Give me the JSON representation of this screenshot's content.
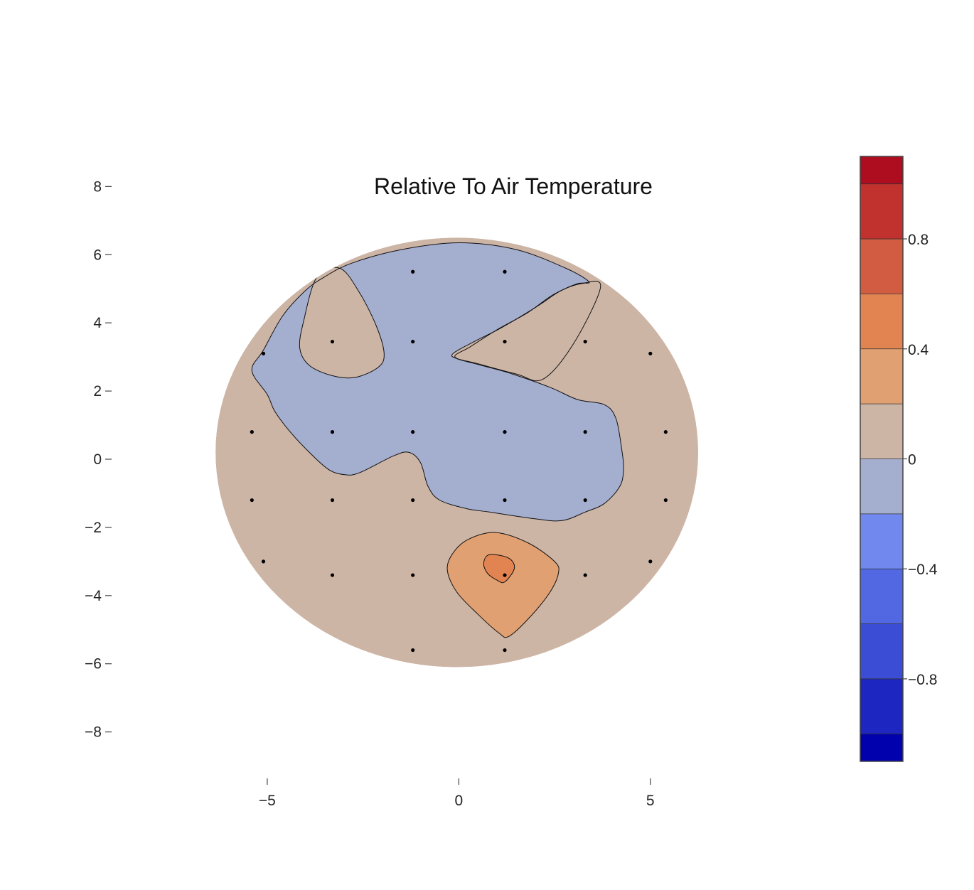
{
  "chart_data": {
    "type": "contour",
    "title": "Relative To Air Temperature",
    "xlabel": "",
    "ylabel": "",
    "xlim": [
      -9.6,
      8.4
    ],
    "ylim": [
      -8.8,
      8.8
    ],
    "x_ticks": [
      {
        "value": -5,
        "label": "−5"
      },
      {
        "value": 0,
        "label": "0"
      },
      {
        "value": 5,
        "label": "5"
      }
    ],
    "y_ticks": [
      {
        "value": 8,
        "label": "8"
      },
      {
        "value": 6,
        "label": "6"
      },
      {
        "value": 4,
        "label": "4"
      },
      {
        "value": 2,
        "label": "2"
      },
      {
        "value": 0,
        "label": "0"
      },
      {
        "value": -2,
        "label": "−2"
      },
      {
        "value": -4,
        "label": "−4"
      },
      {
        "value": -6,
        "label": "−6"
      },
      {
        "value": -8,
        "label": "−8"
      }
    ],
    "grid": false,
    "domain_circle": {
      "cx": -0.05,
      "cy": 0.2,
      "r": 6.3
    },
    "sensor_points": [
      {
        "x": -1.2,
        "y": 5.5
      },
      {
        "x": 1.2,
        "y": 5.5
      },
      {
        "x": -5.1,
        "y": 3.1
      },
      {
        "x": -3.3,
        "y": 3.45
      },
      {
        "x": -1.2,
        "y": 3.45
      },
      {
        "x": 1.2,
        "y": 3.45
      },
      {
        "x": 3.3,
        "y": 3.45
      },
      {
        "x": 5.0,
        "y": 3.1
      },
      {
        "x": -5.4,
        "y": 0.8
      },
      {
        "x": -3.3,
        "y": 0.8
      },
      {
        "x": -1.2,
        "y": 0.8
      },
      {
        "x": 1.2,
        "y": 0.8
      },
      {
        "x": 3.3,
        "y": 0.8
      },
      {
        "x": 5.4,
        "y": 0.8
      },
      {
        "x": -5.4,
        "y": -1.2
      },
      {
        "x": -3.3,
        "y": -1.2
      },
      {
        "x": -1.2,
        "y": -1.2
      },
      {
        "x": 1.2,
        "y": -1.2
      },
      {
        "x": 3.3,
        "y": -1.2
      },
      {
        "x": 5.4,
        "y": -1.2
      },
      {
        "x": -5.1,
        "y": -3.0
      },
      {
        "x": -3.3,
        "y": -3.4
      },
      {
        "x": -1.2,
        "y": -3.4
      },
      {
        "x": 1.2,
        "y": -3.4
      },
      {
        "x": 3.3,
        "y": -3.4
      },
      {
        "x": 5.0,
        "y": -3.0
      },
      {
        "x": -1.2,
        "y": -5.6
      },
      {
        "x": 1.2,
        "y": -5.6
      }
    ],
    "regions": [
      {
        "name": "cold-region-upper",
        "level": [
          -0.2,
          0
        ],
        "color": "#a4aecf",
        "points": [
          [
            -5.4,
            2.6
          ],
          [
            -5.1,
            3.2
          ],
          [
            -4.6,
            4.2
          ],
          [
            -4.0,
            4.95
          ],
          [
            -3.5,
            5.35
          ],
          [
            -2.8,
            5.75
          ],
          [
            -1.5,
            6.15
          ],
          [
            0,
            6.35
          ],
          [
            1.5,
            6.15
          ],
          [
            2.8,
            5.6
          ],
          [
            3.4,
            5.2
          ],
          [
            3.1,
            5.15
          ],
          [
            2.6,
            4.9
          ],
          [
            2.0,
            4.45
          ],
          [
            1.1,
            3.85
          ],
          [
            0.4,
            3.45
          ],
          [
            -0.15,
            3.1
          ],
          [
            -0.05,
            2.95
          ],
          [
            0.6,
            2.75
          ],
          [
            1.4,
            2.5
          ],
          [
            2.4,
            2.1
          ],
          [
            3.1,
            1.75
          ],
          [
            3.8,
            1.6
          ],
          [
            4.1,
            1.2
          ],
          [
            4.25,
            0.3
          ],
          [
            4.3,
            -0.3
          ],
          [
            4.2,
            -0.8
          ],
          [
            3.8,
            -1.3
          ],
          [
            3.3,
            -1.55
          ],
          [
            2.7,
            -1.8
          ],
          [
            2.0,
            -1.75
          ],
          [
            0.8,
            -1.55
          ],
          [
            0.2,
            -1.45
          ],
          [
            -0.5,
            -1.2
          ],
          [
            -0.8,
            -0.8
          ],
          [
            -1.0,
            -0.1
          ],
          [
            -1.3,
            0.2
          ],
          [
            -1.7,
            0.1
          ],
          [
            -2.6,
            -0.4
          ],
          [
            -3.0,
            -0.45
          ],
          [
            -3.4,
            -0.3
          ],
          [
            -3.9,
            0.2
          ],
          [
            -4.4,
            0.8
          ],
          [
            -4.8,
            1.4
          ],
          [
            -5.0,
            1.9
          ]
        ]
      },
      {
        "name": "warm-island-upper-left",
        "level": [
          0,
          0.2
        ],
        "color": "#cdb5a6",
        "points": [
          [
            -3.7,
            5.35
          ],
          [
            -3.1,
            5.6
          ],
          [
            -2.6,
            4.9
          ],
          [
            -2.15,
            3.9
          ],
          [
            -1.95,
            3.1
          ],
          [
            -2.1,
            2.7
          ],
          [
            -2.7,
            2.4
          ],
          [
            -3.3,
            2.45
          ],
          [
            -3.9,
            2.75
          ],
          [
            -4.15,
            3.25
          ],
          [
            -4.05,
            4.05
          ]
        ]
      },
      {
        "name": "warm-region-upper-right-notch",
        "level": [
          0,
          0.2
        ],
        "color": "#cdb5a6",
        "points": [
          [
            -0.1,
            3.0
          ],
          [
            0.3,
            3.3
          ],
          [
            1.0,
            3.8
          ],
          [
            1.8,
            4.3
          ],
          [
            2.5,
            4.85
          ],
          [
            3.2,
            5.15
          ],
          [
            3.7,
            5.05
          ],
          [
            3.0,
            3.4
          ],
          [
            2.2,
            2.35
          ],
          [
            1.5,
            2.5
          ],
          [
            0.5,
            2.8
          ]
        ]
      },
      {
        "name": "warm-bump-lower",
        "level": [
          0.2,
          0.4
        ],
        "color": "#e0a071",
        "points": [
          [
            0.25,
            -2.35
          ],
          [
            0.95,
            -2.15
          ],
          [
            1.8,
            -2.45
          ],
          [
            2.5,
            -3.0
          ],
          [
            2.6,
            -3.35
          ],
          [
            2.35,
            -3.95
          ],
          [
            1.8,
            -4.7
          ],
          [
            1.3,
            -5.2
          ],
          [
            1.05,
            -5.1
          ],
          [
            0.5,
            -4.55
          ],
          [
            -0.05,
            -3.9
          ],
          [
            -0.3,
            -3.25
          ],
          [
            -0.15,
            -2.75
          ]
        ]
      },
      {
        "name": "warm-core-lower",
        "level": [
          0.4,
          0.6
        ],
        "color": "#e28452",
        "points": [
          [
            0.8,
            -2.8
          ],
          [
            1.3,
            -2.9
          ],
          [
            1.45,
            -3.2
          ],
          [
            1.2,
            -3.6
          ],
          [
            1.0,
            -3.55
          ],
          [
            0.75,
            -3.35
          ],
          [
            0.65,
            -3.05
          ]
        ]
      }
    ],
    "base_region": {
      "level": [
        0,
        0.2
      ],
      "color": "#cdb5a6"
    },
    "colorbar": {
      "levels": [
        1.0,
        0.8,
        0.6,
        0.4,
        0.2,
        0,
        -0.2,
        -0.4,
        -0.6,
        -0.8,
        -1.0
      ],
      "segments": [
        {
          "from": 1.0,
          "to": 1.1,
          "color": "#ae0c1f"
        },
        {
          "from": 0.8,
          "to": 1.0,
          "color": "#c1322e"
        },
        {
          "from": 0.6,
          "to": 0.8,
          "color": "#d15c42"
        },
        {
          "from": 0.4,
          "to": 0.6,
          "color": "#e28452"
        },
        {
          "from": 0.2,
          "to": 0.4,
          "color": "#e0a071"
        },
        {
          "from": 0,
          "to": 0.2,
          "color": "#cdb5a6"
        },
        {
          "from": -0.2,
          "to": 0,
          "color": "#a4aecf"
        },
        {
          "from": -0.4,
          "to": -0.2,
          "color": "#7189ef"
        },
        {
          "from": -0.6,
          "to": -0.4,
          "color": "#5168e2"
        },
        {
          "from": -0.8,
          "to": -0.6,
          "color": "#3b4cd5"
        },
        {
          "from": -1.0,
          "to": -0.8,
          "color": "#1d26c1"
        },
        {
          "from": -1.1,
          "to": -1.0,
          "color": "#0102ae"
        }
      ],
      "ticks": [
        {
          "value": 0.8,
          "label": "0.8"
        },
        {
          "value": 0.4,
          "label": "0.4"
        },
        {
          "value": 0,
          "label": "0"
        },
        {
          "value": -0.4,
          "label": "−0.4"
        },
        {
          "value": -0.8,
          "label": "−0.8"
        }
      ]
    }
  }
}
